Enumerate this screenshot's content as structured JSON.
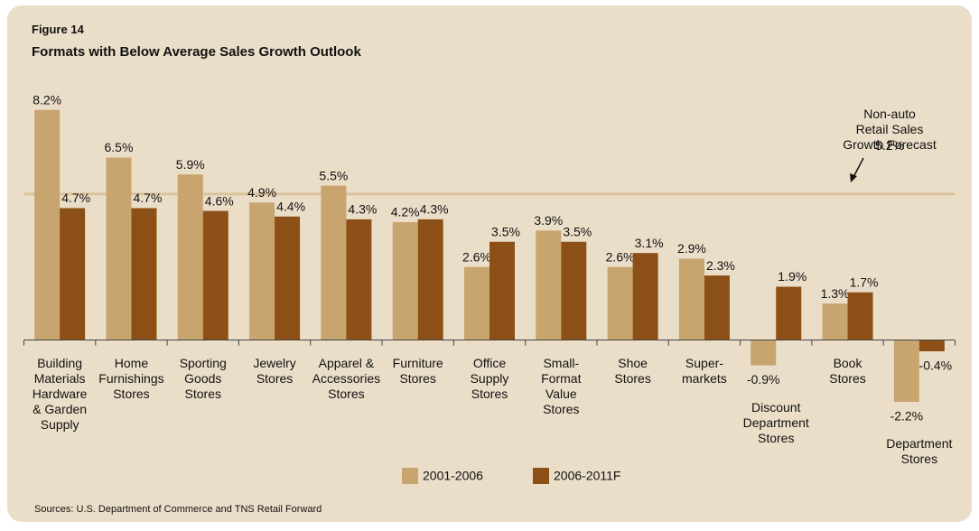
{
  "chart_data": {
    "type": "bar",
    "figure_label": "Figure 14",
    "title": "Formats with Below Average Sales Growth Outlook",
    "categories": [
      "Building\nMaterials\nHardware\n& Garden\nSupply",
      "Home\nFurnishings\nStores",
      "Sporting\nGoods\nStores",
      "Jewelry\nStores",
      "Apparel &\nAccessories\nStores",
      "Furniture\nStores",
      "Office\nSupply\nStores",
      "Small-\nFormat\nValue\nStores",
      "Shoe\nStores",
      "Super-\nmarkets",
      "Discount\nDepartment\nStores",
      "Book\nStores",
      "Department\nStores"
    ],
    "series": [
      {
        "name": "2001-2006",
        "color": "#c8a46e",
        "values": [
          8.2,
          6.5,
          5.9,
          4.9,
          5.5,
          4.2,
          2.6,
          3.9,
          2.6,
          2.9,
          -0.9,
          1.3,
          -2.2
        ],
        "value_labels": [
          "8.2%",
          "6.5%",
          "5.9%",
          "4.9%",
          "5.5%",
          "4.2%",
          "2.6%",
          "3.9%",
          "2.6%",
          "2.9%",
          "-0.9%",
          "1.3%",
          "-2.2%"
        ]
      },
      {
        "name": "2006-2011F",
        "color": "#8c5016",
        "values": [
          4.7,
          4.7,
          4.6,
          4.4,
          4.3,
          4.3,
          3.5,
          3.5,
          3.1,
          2.3,
          1.9,
          1.7,
          -0.4
        ],
        "value_labels": [
          "4.7%",
          "4.7%",
          "4.6%",
          "4.4%",
          "4.3%",
          "4.3%",
          "3.5%",
          "3.5%",
          "3.1%",
          "2.3%",
          "1.9%",
          "1.7%",
          "-0.4%"
        ]
      }
    ],
    "ylim": [
      -3,
      9
    ],
    "reference_line": {
      "label": "Non-auto\nRetail Sales\nGrowth Forecast",
      "value": 5.2,
      "value_label": "5.2%",
      "color": "#dcc29c"
    },
    "source": "Sources: U.S. Department of Commerce and TNS Retail Forward"
  }
}
